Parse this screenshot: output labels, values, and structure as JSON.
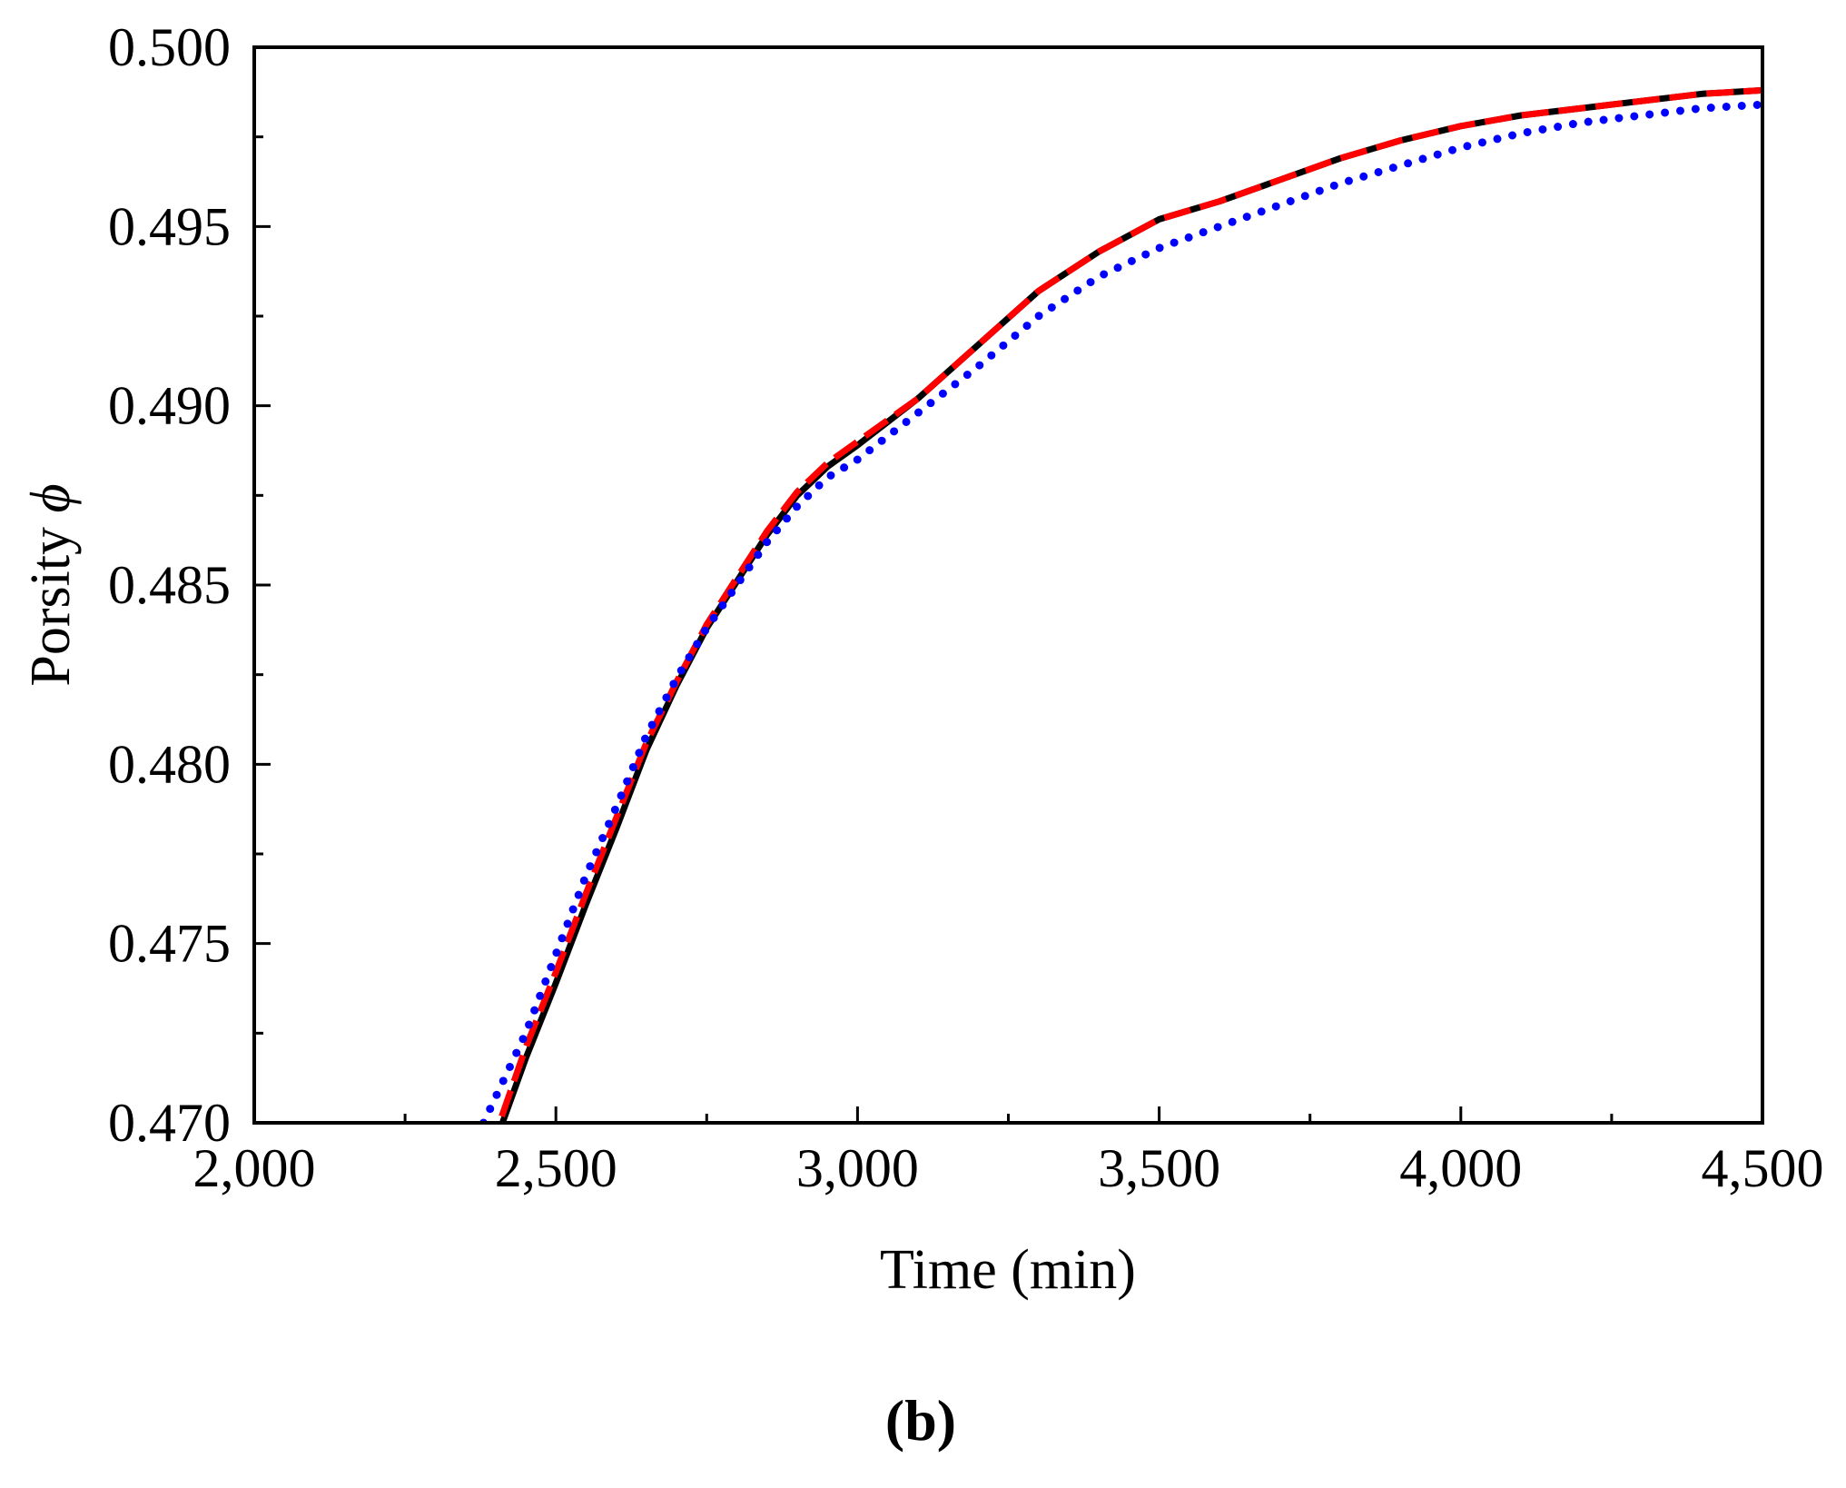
{
  "chart_data": {
    "type": "line",
    "title": "",
    "xlabel": "Time (min)",
    "ylabel_text": "Porsity ",
    "ylabel_symbol": "ϕ",
    "xlim": [
      2000,
      4500
    ],
    "ylim": [
      0.47,
      0.5
    ],
    "x_ticks": [
      2000,
      2500,
      3000,
      3500,
      4000,
      4500
    ],
    "x_tick_labels": [
      "2,000",
      "2,500",
      "3,000",
      "3,500",
      "4,000",
      "4,500"
    ],
    "y_ticks": [
      0.47,
      0.475,
      0.48,
      0.485,
      0.49,
      0.495,
      0.5
    ],
    "y_tick_labels": [
      "0.470",
      "0.475",
      "0.480",
      "0.485",
      "0.490",
      "0.495",
      "0.500"
    ],
    "grid": false,
    "legend": "none",
    "series": [
      {
        "color": "#000000",
        "style": "solid",
        "x": [
          2390,
          2450,
          2500,
          2550,
          2600,
          2650,
          2700,
          2750,
          2800,
          2850,
          2900,
          2950,
          3000,
          3100,
          3200,
          3300,
          3400,
          3500,
          3600,
          3700,
          3800,
          3900,
          4000,
          4100,
          4200,
          4300,
          4400,
          4500
        ],
        "y": [
          0.469,
          0.4718,
          0.4739,
          0.4761,
          0.4782,
          0.4804,
          0.4822,
          0.4838,
          0.4851,
          0.4864,
          0.4875,
          0.4883,
          0.4889,
          0.4902,
          0.4917,
          0.4932,
          0.4943,
          0.4952,
          0.4957,
          0.4963,
          0.4969,
          0.4974,
          0.4978,
          0.4981,
          0.4983,
          0.4985,
          0.4987,
          0.4988
        ]
      },
      {
        "color": "#ff0000",
        "style": "dashed",
        "x": [
          2390,
          2450,
          2500,
          2550,
          2600,
          2650,
          2700,
          2750,
          2800,
          2850,
          2900,
          2950,
          3000,
          3100,
          3200,
          3300,
          3400,
          3500,
          3600,
          3700,
          3800,
          3900,
          4000,
          4100,
          4200,
          4300,
          4400,
          4500
        ],
        "y": [
          0.4692,
          0.4721,
          0.4742,
          0.4764,
          0.4785,
          0.4806,
          0.4823,
          0.4839,
          0.4852,
          0.4865,
          0.4876,
          0.4884,
          0.489,
          0.4902,
          0.4917,
          0.4932,
          0.4943,
          0.4952,
          0.4957,
          0.4963,
          0.4969,
          0.4974,
          0.4978,
          0.4981,
          0.4983,
          0.4985,
          0.4987,
          0.4988
        ]
      },
      {
        "color": "#0000ff",
        "style": "dotted",
        "x": [
          2380,
          2450,
          2500,
          2550,
          2600,
          2650,
          2700,
          2750,
          2800,
          2850,
          2900,
          2950,
          3000,
          3100,
          3200,
          3300,
          3400,
          3500,
          3600,
          3700,
          3800,
          3900,
          4000,
          4100,
          4200,
          4300,
          4400,
          4500
        ],
        "y": [
          0.47,
          0.4725,
          0.4747,
          0.4769,
          0.4788,
          0.4808,
          0.4824,
          0.4838,
          0.485,
          0.4862,
          0.4872,
          0.488,
          0.4885,
          0.4898,
          0.4911,
          0.4925,
          0.4936,
          0.4944,
          0.495,
          0.4956,
          0.4962,
          0.4967,
          0.4972,
          0.4976,
          0.4979,
          0.4981,
          0.4983,
          0.4984
        ]
      }
    ]
  },
  "panel_label": "(b)"
}
